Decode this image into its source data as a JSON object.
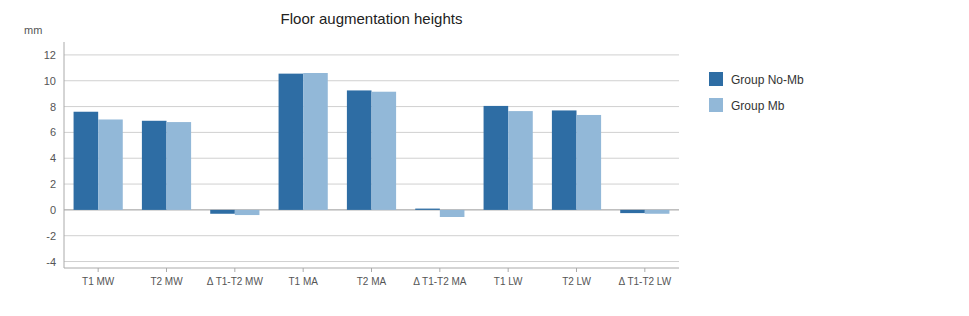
{
  "chart_data": {
    "type": "bar",
    "title": "Floor augmentation heights",
    "ylabel": "mm",
    "categories": [
      "T1 MW",
      "T2 MW",
      "Δ T1-T2 MW",
      "T1 MA",
      "T2 MA",
      "Δ T1-T2 MA",
      "T1 LW",
      "T2 LW",
      "Δ T1-T2 LW"
    ],
    "series": [
      {
        "name": "Group No-Mb",
        "color": "#2E6DA4",
        "values": [
          7.6,
          6.9,
          -0.3,
          10.55,
          9.25,
          0.1,
          8.05,
          7.7,
          -0.25
        ]
      },
      {
        "name": "Group Mb",
        "color": "#92B8D8",
        "values": [
          7.0,
          6.8,
          -0.4,
          10.6,
          9.15,
          -0.55,
          7.65,
          7.35,
          -0.3
        ]
      }
    ],
    "ylim": [
      -4.5,
      13
    ],
    "yticks": [
      -4,
      -2,
      0,
      2,
      4,
      6,
      8,
      10,
      12
    ],
    "grid": true,
    "legend": "right"
  }
}
